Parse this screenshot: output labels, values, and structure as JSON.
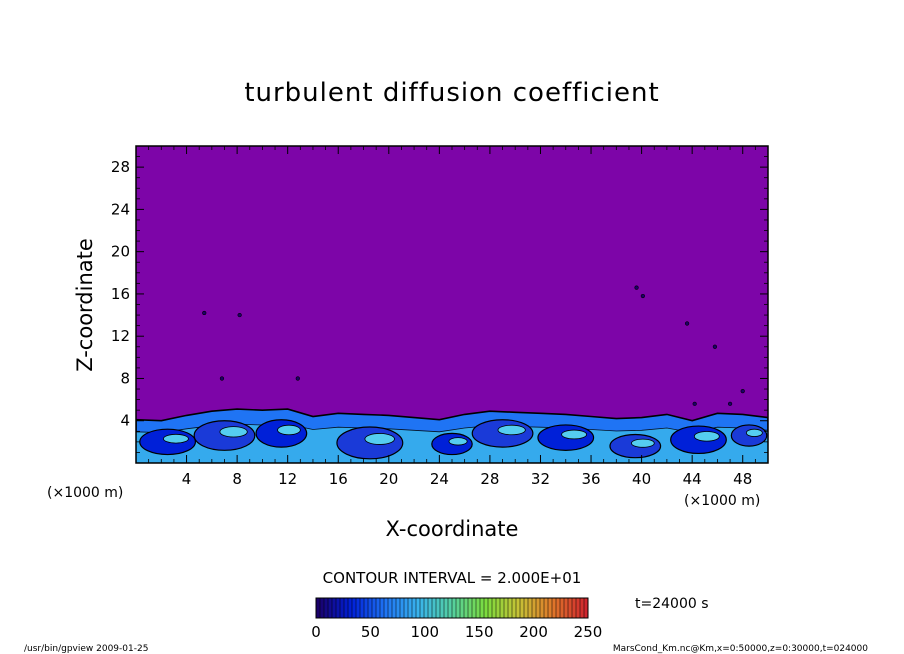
{
  "chart_data": {
    "type": "heatmap",
    "title": "turbulent diffusion coefficient",
    "xlabel": "X-coordinate",
    "ylabel": "Z-coordinate",
    "x_unit": "(×1000 m)",
    "y_unit": "(×1000 m)",
    "xlim": [
      0,
      50
    ],
    "ylim": [
      0,
      30
    ],
    "x_ticks": [
      4,
      8,
      12,
      16,
      20,
      24,
      28,
      32,
      36,
      40,
      44,
      48
    ],
    "y_ticks": [
      4,
      8,
      12,
      16,
      20,
      24,
      28
    ],
    "background_value": 250,
    "contour_interval": "CONTOUR INTERVAL = 2.000E+01",
    "colorbar": {
      "min": 0,
      "max": 250,
      "ticks": [
        0,
        50,
        100,
        150,
        200,
        250
      ]
    },
    "time_label": "t=24000 s",
    "turbulent_layer_top": [
      [
        0,
        4.1
      ],
      [
        2,
        4.0
      ],
      [
        4,
        4.5
      ],
      [
        6,
        4.9
      ],
      [
        8,
        5.1
      ],
      [
        10,
        5.0
      ],
      [
        12,
        5.1
      ],
      [
        14,
        4.4
      ],
      [
        16,
        4.7
      ],
      [
        18,
        4.6
      ],
      [
        20,
        4.5
      ],
      [
        22,
        4.3
      ],
      [
        24,
        4.1
      ],
      [
        26,
        4.6
      ],
      [
        28,
        4.9
      ],
      [
        30,
        4.8
      ],
      [
        32,
        4.7
      ],
      [
        34,
        4.6
      ],
      [
        36,
        4.4
      ],
      [
        38,
        4.2
      ],
      [
        40,
        4.3
      ],
      [
        42,
        4.6
      ],
      [
        44,
        4.0
      ],
      [
        46,
        4.7
      ],
      [
        48,
        4.6
      ],
      [
        50,
        4.3
      ]
    ],
    "eddies": [
      {
        "x": 2.5,
        "z": 2.0,
        "rx": 2.2,
        "rz": 1.2
      },
      {
        "x": 7.0,
        "z": 2.6,
        "rx": 2.4,
        "rz": 1.4
      },
      {
        "x": 11.5,
        "z": 2.8,
        "rx": 2.0,
        "rz": 1.3
      },
      {
        "x": 18.5,
        "z": 1.9,
        "rx": 2.6,
        "rz": 1.5
      },
      {
        "x": 25.0,
        "z": 1.8,
        "rx": 1.6,
        "rz": 1.0
      },
      {
        "x": 29.0,
        "z": 2.8,
        "rx": 2.4,
        "rz": 1.3
      },
      {
        "x": 34.0,
        "z": 2.4,
        "rx": 2.2,
        "rz": 1.2
      },
      {
        "x": 39.5,
        "z": 1.6,
        "rx": 2.0,
        "rz": 1.1
      },
      {
        "x": 44.5,
        "z": 2.2,
        "rx": 2.2,
        "rz": 1.3
      },
      {
        "x": 48.5,
        "z": 2.6,
        "rx": 1.4,
        "rz": 1.0
      }
    ],
    "specks": [
      {
        "x": 5.4,
        "z": 14.2
      },
      {
        "x": 8.2,
        "z": 14.0
      },
      {
        "x": 12.8,
        "z": 8.0
      },
      {
        "x": 6.8,
        "z": 8.0
      },
      {
        "x": 39.6,
        "z": 16.6
      },
      {
        "x": 40.1,
        "z": 15.8
      },
      {
        "x": 43.6,
        "z": 13.2
      },
      {
        "x": 45.8,
        "z": 11.0
      },
      {
        "x": 48.0,
        "z": 6.8
      },
      {
        "x": 47.0,
        "z": 5.6
      },
      {
        "x": 44.2,
        "z": 5.6
      }
    ]
  },
  "footer": {
    "left": "/usr/bin/gpview   2009-01-25",
    "right": "MarsCond_Km.nc@Km,x=0:50000,z=0:30000,t=024000"
  },
  "colors": {
    "background_field": "#7d05a8",
    "axis": "#000000",
    "cmap": [
      "#1a006a",
      "#0020d8",
      "#1f74f4",
      "#39b4ec",
      "#55d0a0",
      "#7cdc3e",
      "#c7c236",
      "#e0782a",
      "#d0262e"
    ]
  }
}
